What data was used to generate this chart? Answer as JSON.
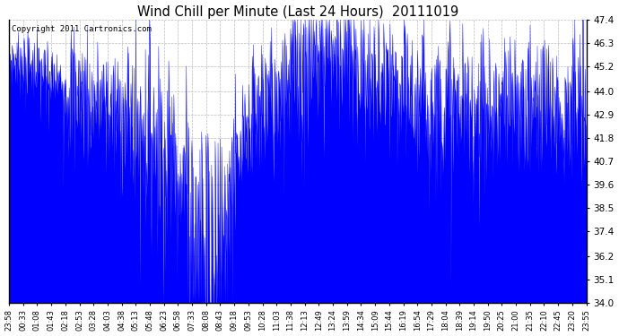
{
  "title": "Wind Chill per Minute (Last 24 Hours)  20111019",
  "copyright": "Copyright 2011 Cartronics.com",
  "line_color": "#0000FF",
  "fill_color": "#0000FF",
  "bg_color": "#FFFFFF",
  "plot_bg_color": "#FFFFFF",
  "grid_color": "#AAAAAA",
  "ylim": [
    34.0,
    47.4
  ],
  "yticks": [
    34.0,
    35.1,
    36.2,
    37.4,
    38.5,
    39.6,
    40.7,
    41.8,
    42.9,
    44.0,
    45.2,
    46.3,
    47.4
  ],
  "xtick_labels": [
    "23:58",
    "00:33",
    "01:08",
    "01:43",
    "02:18",
    "02:53",
    "03:28",
    "04:03",
    "04:38",
    "05:13",
    "05:48",
    "06:23",
    "06:58",
    "07:33",
    "08:08",
    "08:43",
    "09:18",
    "09:53",
    "10:28",
    "11:03",
    "11:38",
    "12:13",
    "12:49",
    "13:24",
    "13:59",
    "14:34",
    "15:09",
    "15:44",
    "16:19",
    "16:54",
    "17:29",
    "18:04",
    "18:39",
    "19:14",
    "19:50",
    "20:25",
    "21:00",
    "21:35",
    "22:10",
    "22:45",
    "23:20",
    "23:55"
  ],
  "n_points": 1440
}
